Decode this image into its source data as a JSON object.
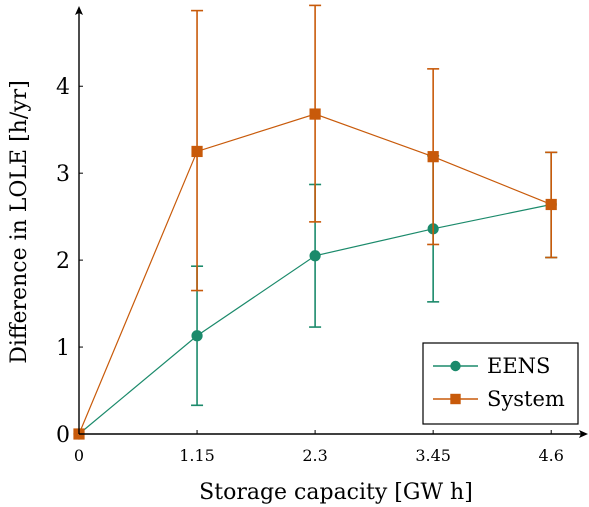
{
  "chart_data": {
    "type": "line",
    "xlabel": "Storage capacity [GW h]",
    "ylabel": "Difference in LOLE [h/yr]",
    "x": [
      0,
      1.15,
      2.3,
      3.45,
      4.6
    ],
    "xticks": [
      "0",
      "1.15",
      "2.3",
      "3.45",
      "4.6"
    ],
    "yticks": [
      0,
      1,
      2,
      3,
      4
    ],
    "xlim": [
      0,
      4.9
    ],
    "ylim": [
      0,
      4.9
    ],
    "grid": false,
    "legend_position": "bottom-right",
    "series": [
      {
        "name": "EENS",
        "color": "#1b8a6b",
        "marker": "circle",
        "values": [
          0,
          1.13,
          2.05,
          2.36,
          2.64
        ],
        "error_low": [
          0,
          0.33,
          1.23,
          1.52,
          2.03
        ],
        "error_high": [
          0,
          1.93,
          2.87,
          3.2,
          3.24
        ]
      },
      {
        "name": "System",
        "color": "#c85a0a",
        "marker": "square",
        "values": [
          0,
          3.25,
          3.68,
          3.19,
          2.64
        ],
        "error_low": [
          0,
          1.65,
          2.44,
          2.18,
          2.03
        ],
        "error_high": [
          0,
          4.87,
          4.93,
          4.2,
          3.24
        ]
      }
    ]
  }
}
